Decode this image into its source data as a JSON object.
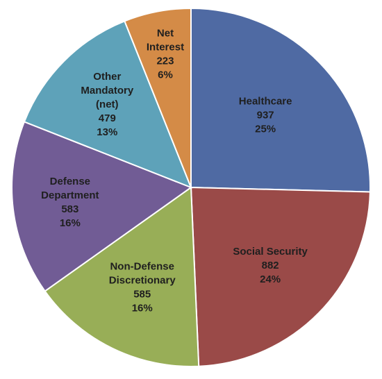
{
  "chart_data": {
    "type": "pie",
    "title": "",
    "slices": [
      {
        "label_lines": [
          "Healthcare"
        ],
        "value": 937,
        "value_text": "937",
        "percent_text": "25%",
        "color": "#4F6AA3"
      },
      {
        "label_lines": [
          "Social Security"
        ],
        "value": 882,
        "value_text": "882",
        "percent_text": "24%",
        "color": "#9A4A48"
      },
      {
        "label_lines": [
          "Non-Defense",
          "Discretionary"
        ],
        "value": 585,
        "value_text": "585",
        "percent_text": "16%",
        "color": "#98AE57"
      },
      {
        "label_lines": [
          "Defense",
          "Department"
        ],
        "value": 583,
        "value_text": "583",
        "percent_text": "16%",
        "color": "#715C95"
      },
      {
        "label_lines": [
          "Other",
          "Mandatory",
          "(net)"
        ],
        "value": 479,
        "value_text": "479",
        "percent_text": "13%",
        "color": "#5EA2B9"
      },
      {
        "label_lines": [
          "Net",
          "Interest"
        ],
        "value": 223,
        "value_text": "223",
        "percent_text": "6%",
        "color": "#D48B47"
      }
    ]
  }
}
